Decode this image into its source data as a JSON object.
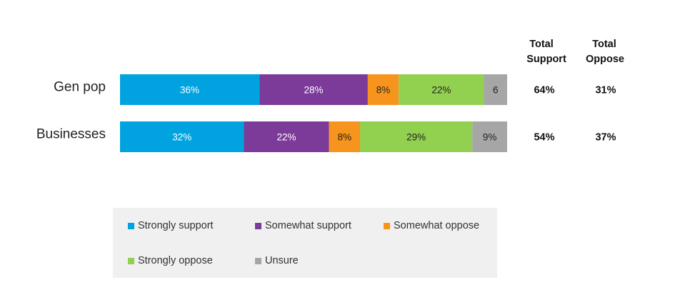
{
  "chart_data": {
    "type": "bar",
    "orientation": "horizontal",
    "stacked": true,
    "categories": [
      "Gen pop",
      "Businesses"
    ],
    "series": [
      {
        "name": "Strongly support",
        "color": "#00a3e0",
        "values": [
          36,
          32
        ],
        "labels": [
          "36%",
          "32%"
        ]
      },
      {
        "name": "Somewhat support",
        "color": "#7c3b99",
        "values": [
          28,
          22
        ],
        "labels": [
          "28%",
          "22%"
        ]
      },
      {
        "name": "Somewhat oppose",
        "color": "#f7941d",
        "values": [
          8,
          8
        ],
        "labels": [
          "8%",
          "8%"
        ]
      },
      {
        "name": "Strongly oppose",
        "color": "#92d050",
        "values": [
          22,
          29
        ],
        "labels": [
          "22%",
          "29%"
        ]
      },
      {
        "name": "Unsure",
        "color": "#a6a6a6",
        "values": [
          6,
          9
        ],
        "labels": [
          "6",
          "9%"
        ]
      }
    ],
    "totals": {
      "support_header": [
        "Total",
        "Support"
      ],
      "oppose_header": [
        "Total",
        "Oppose"
      ],
      "support": [
        "64%",
        "54%"
      ],
      "oppose": [
        "31%",
        "37%"
      ]
    },
    "legend_position": "bottom",
    "grid": false
  }
}
